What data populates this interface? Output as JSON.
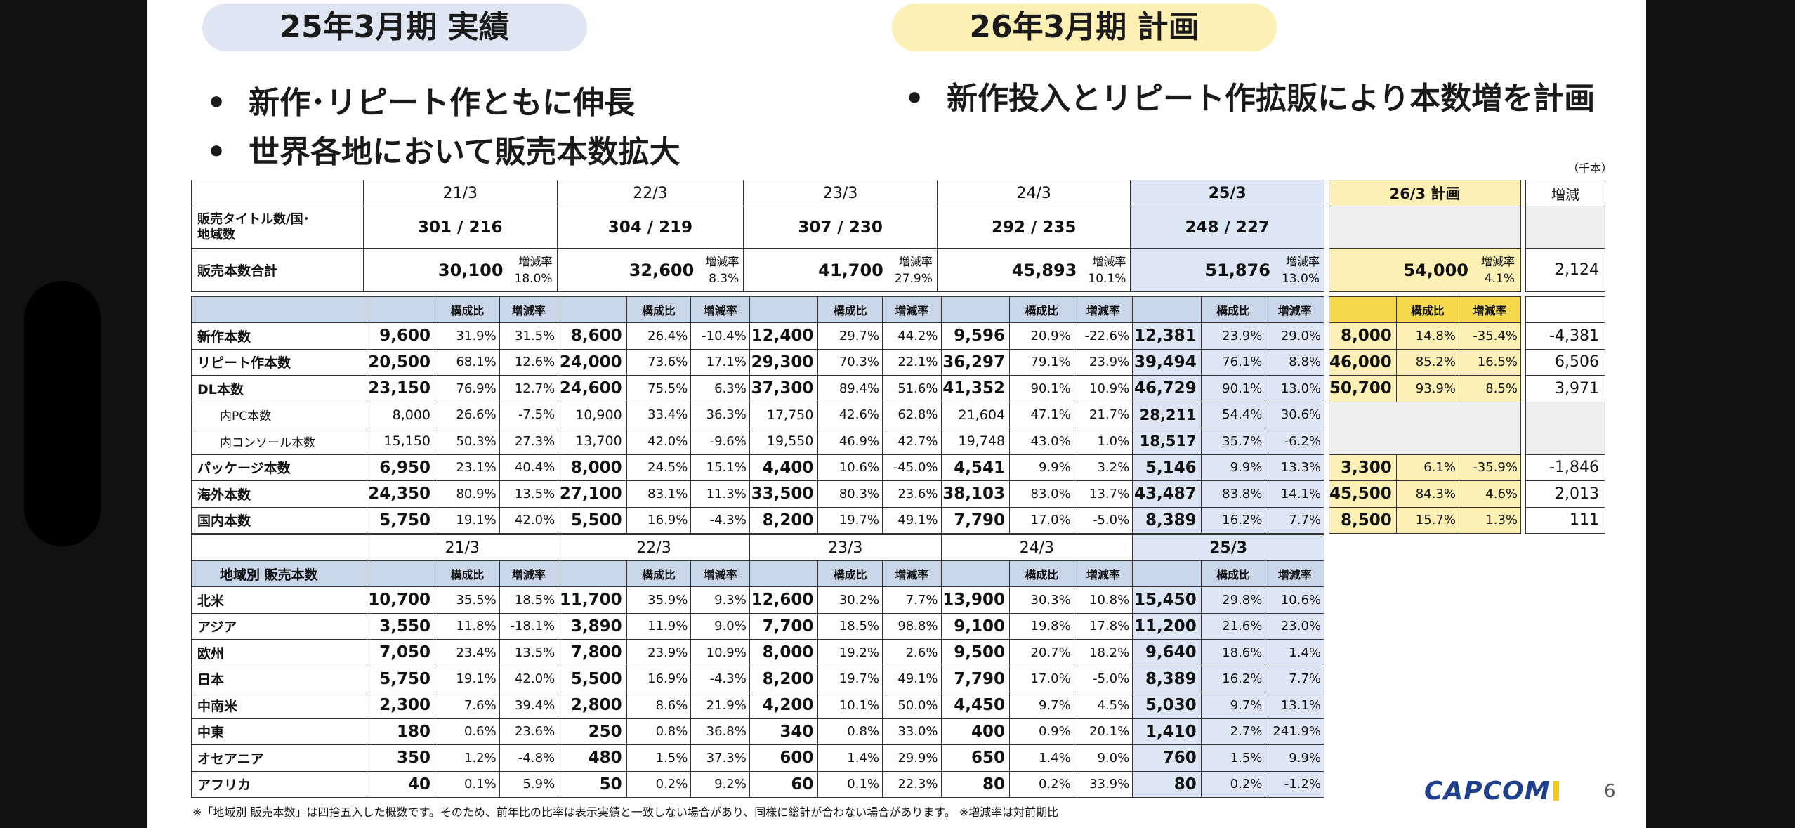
{
  "headers": {
    "actual": "25年3月期 実績",
    "plan": "26年3月期 計画"
  },
  "bullets": {
    "a1": "新作･リピート作ともに伸長",
    "a2": "世界各地において販売本数拡大",
    "p1": "新作投入とリピート作拡販により本数増を計画",
    "mark": "•"
  },
  "unit": "（千本）",
  "years": [
    "21/3",
    "22/3",
    "23/3",
    "24/3",
    "25/3"
  ],
  "plan_year": "26/3 計画",
  "diff_label": "増減",
  "kouseihi": "構成比",
  "zogenritsu": "増減率",
  "titles_row": {
    "label": "販売タイトル数/国･地域数",
    "values": [
      "301 / 216",
      "304 / 219",
      "307 / 230",
      "292 / 235",
      "248 / 227"
    ]
  },
  "total_row": {
    "label": "販売本数合計",
    "values": [
      "30,100",
      "32,600",
      "41,700",
      "45,893",
      "51,876"
    ],
    "rates": [
      "18.0%",
      "8.3%",
      "27.9%",
      "10.1%",
      "13.0%"
    ],
    "plan_value": "54,000",
    "plan_rate": "4.1%",
    "diff": "2,124"
  },
  "units_rows": [
    {
      "label": "新作本数",
      "sub": false,
      "cells": [
        [
          "9,600",
          "31.9%",
          "31.5%"
        ],
        [
          "8,600",
          "26.4%",
          "-10.4%"
        ],
        [
          "12,400",
          "29.7%",
          "44.2%"
        ],
        [
          "9,596",
          "20.9%",
          "-22.6%"
        ],
        [
          "12,381",
          "23.9%",
          "29.0%"
        ]
      ],
      "plan": [
        "8,000",
        "14.8%",
        "-35.4%"
      ],
      "diff": "-4,381"
    },
    {
      "label": "リピート作本数",
      "sub": false,
      "cells": [
        [
          "20,500",
          "68.1%",
          "12.6%"
        ],
        [
          "24,000",
          "73.6%",
          "17.1%"
        ],
        [
          "29,300",
          "70.3%",
          "22.1%"
        ],
        [
          "36,297",
          "79.1%",
          "23.9%"
        ],
        [
          "39,494",
          "76.1%",
          "8.8%"
        ]
      ],
      "plan": [
        "46,000",
        "85.2%",
        "16.5%"
      ],
      "diff": "6,506"
    },
    {
      "label": "DL本数",
      "sub": false,
      "cells": [
        [
          "23,150",
          "76.9%",
          "12.7%"
        ],
        [
          "24,600",
          "75.5%",
          "6.3%"
        ],
        [
          "37,300",
          "89.4%",
          "51.6%"
        ],
        [
          "41,352",
          "90.1%",
          "10.9%"
        ],
        [
          "46,729",
          "90.1%",
          "13.0%"
        ]
      ],
      "plan": [
        "50,700",
        "93.9%",
        "8.5%"
      ],
      "diff": "3,971"
    },
    {
      "label": "内PC本数",
      "sub": true,
      "cells": [
        [
          "8,000",
          "26.6%",
          "-7.5%"
        ],
        [
          "10,900",
          "33.4%",
          "36.3%"
        ],
        [
          "17,750",
          "42.6%",
          "62.8%"
        ],
        [
          "21,604",
          "47.1%",
          "21.7%"
        ],
        [
          "28,211",
          "54.4%",
          "30.6%"
        ]
      ],
      "plan": null,
      "diff": ""
    },
    {
      "label": "内コンソール本数",
      "sub": true,
      "cells": [
        [
          "15,150",
          "50.3%",
          "27.3%"
        ],
        [
          "13,700",
          "42.0%",
          "-9.6%"
        ],
        [
          "19,550",
          "46.9%",
          "42.7%"
        ],
        [
          "19,748",
          "43.0%",
          "1.0%"
        ],
        [
          "18,517",
          "35.7%",
          "-6.2%"
        ]
      ],
      "plan": null,
      "diff": ""
    },
    {
      "label": "パッケージ本数",
      "sub": false,
      "cells": [
        [
          "6,950",
          "23.1%",
          "40.4%"
        ],
        [
          "8,000",
          "24.5%",
          "15.1%"
        ],
        [
          "4,400",
          "10.6%",
          "-45.0%"
        ],
        [
          "4,541",
          "9.9%",
          "3.2%"
        ],
        [
          "5,146",
          "9.9%",
          "13.3%"
        ]
      ],
      "plan": [
        "3,300",
        "6.1%",
        "-35.9%"
      ],
      "diff": "-1,846"
    },
    {
      "label": "海外本数",
      "sub": false,
      "cells": [
        [
          "24,350",
          "80.9%",
          "13.5%"
        ],
        [
          "27,100",
          "83.1%",
          "11.3%"
        ],
        [
          "33,500",
          "80.3%",
          "23.6%"
        ],
        [
          "38,103",
          "83.0%",
          "13.7%"
        ],
        [
          "43,487",
          "83.8%",
          "14.1%"
        ]
      ],
      "plan": [
        "45,500",
        "84.3%",
        "4.6%"
      ],
      "diff": "2,013"
    },
    {
      "label": "国内本数",
      "sub": false,
      "cells": [
        [
          "5,750",
          "19.1%",
          "42.0%"
        ],
        [
          "5,500",
          "16.9%",
          "-4.3%"
        ],
        [
          "8,200",
          "19.7%",
          "49.1%"
        ],
        [
          "7,790",
          "17.0%",
          "-5.0%"
        ],
        [
          "8,389",
          "16.2%",
          "7.7%"
        ]
      ],
      "plan": [
        "8,500",
        "15.7%",
        "1.3%"
      ],
      "diff": "111"
    }
  ],
  "region_label": "地域別 販売本数",
  "region_rows": [
    {
      "label": "北米",
      "cells": [
        [
          "10,700",
          "35.5%",
          "18.5%"
        ],
        [
          "11,700",
          "35.9%",
          "9.3%"
        ],
        [
          "12,600",
          "30.2%",
          "7.7%"
        ],
        [
          "13,900",
          "30.3%",
          "10.8%"
        ],
        [
          "15,450",
          "29.8%",
          "10.6%"
        ]
      ]
    },
    {
      "label": "アジア",
      "cells": [
        [
          "3,550",
          "11.8%",
          "-18.1%"
        ],
        [
          "3,890",
          "11.9%",
          "9.0%"
        ],
        [
          "7,700",
          "18.5%",
          "98.8%"
        ],
        [
          "9,100",
          "19.8%",
          "17.8%"
        ],
        [
          "11,200",
          "21.6%",
          "23.0%"
        ]
      ]
    },
    {
      "label": "欧州",
      "cells": [
        [
          "7,050",
          "23.4%",
          "13.5%"
        ],
        [
          "7,800",
          "23.9%",
          "10.9%"
        ],
        [
          "8,000",
          "19.2%",
          "2.6%"
        ],
        [
          "9,500",
          "20.7%",
          "18.2%"
        ],
        [
          "9,640",
          "18.6%",
          "1.4%"
        ]
      ]
    },
    {
      "label": "日本",
      "cells": [
        [
          "5,750",
          "19.1%",
          "42.0%"
        ],
        [
          "5,500",
          "16.9%",
          "-4.3%"
        ],
        [
          "8,200",
          "19.7%",
          "49.1%"
        ],
        [
          "7,790",
          "17.0%",
          "-5.0%"
        ],
        [
          "8,389",
          "16.2%",
          "7.7%"
        ]
      ]
    },
    {
      "label": "中南米",
      "cells": [
        [
          "2,300",
          "7.6%",
          "39.4%"
        ],
        [
          "2,800",
          "8.6%",
          "21.9%"
        ],
        [
          "4,200",
          "10.1%",
          "50.0%"
        ],
        [
          "4,450",
          "9.7%",
          "4.5%"
        ],
        [
          "5,030",
          "9.7%",
          "13.1%"
        ]
      ]
    },
    {
      "label": "中東",
      "cells": [
        [
          "180",
          "0.6%",
          "23.6%"
        ],
        [
          "250",
          "0.8%",
          "36.8%"
        ],
        [
          "340",
          "0.8%",
          "33.0%"
        ],
        [
          "400",
          "0.9%",
          "20.1%"
        ],
        [
          "1,410",
          "2.7%",
          "241.9%"
        ]
      ]
    },
    {
      "label": "オセアニア",
      "cells": [
        [
          "350",
          "1.2%",
          "-4.8%"
        ],
        [
          "480",
          "1.5%",
          "37.3%"
        ],
        [
          "600",
          "1.4%",
          "29.9%"
        ],
        [
          "650",
          "1.4%",
          "9.0%"
        ],
        [
          "760",
          "1.5%",
          "9.9%"
        ]
      ]
    },
    {
      "label": "アフリカ",
      "cells": [
        [
          "40",
          "0.1%",
          "5.9%"
        ],
        [
          "50",
          "0.2%",
          "9.2%"
        ],
        [
          "60",
          "0.1%",
          "22.3%"
        ],
        [
          "80",
          "0.2%",
          "33.9%"
        ],
        [
          "80",
          "0.2%",
          "-1.2%"
        ]
      ]
    }
  ],
  "footer": "※「地域別 販売本数」は四捨五入した概数です。そのため、前年比の比率は表示実績と一致しない場合があり、同様に総計が合わない場合があります。 ※増減率は対前期比",
  "logo": "CAPCOM",
  "page_number": "6"
}
